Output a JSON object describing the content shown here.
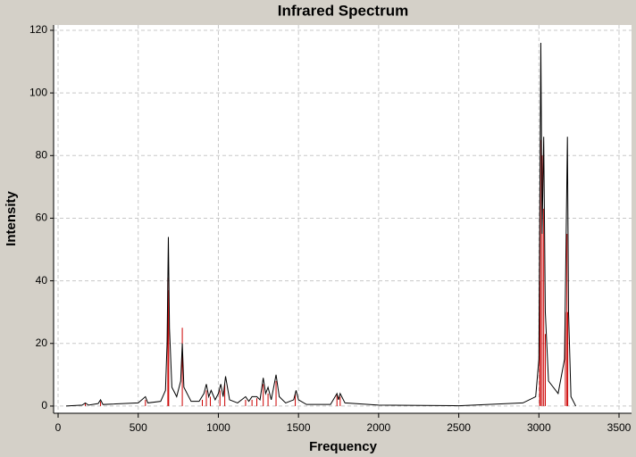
{
  "chart_data": {
    "type": "line",
    "title": "Infrared Spectrum",
    "x_label": "Frequency",
    "y_label": "Intensity",
    "xlim": [
      -28,
      3578
    ],
    "ylim": [
      -2.3,
      121.7
    ],
    "xticks": [
      0,
      500,
      1000,
      1500,
      2000,
      2500,
      3000,
      3500
    ],
    "yticks": [
      0,
      20,
      40,
      60,
      80,
      100,
      120
    ],
    "grid": true,
    "series": [
      {
        "type": "stick",
        "color": "#cc0000",
        "x": [
          170,
          265,
          545,
          685,
          690,
          775,
          900,
          925,
          950,
          1010,
          1040,
          1170,
          1210,
          1240,
          1280,
          1310,
          1360,
          1480,
          1740,
          1760,
          3005,
          3010,
          3020,
          3030,
          3040,
          3165,
          3175,
          3180
        ],
        "values": [
          1,
          1.5,
          2,
          41,
          37,
          25,
          2,
          5,
          3,
          5,
          7,
          2,
          2,
          2.5,
          7,
          4,
          8,
          4,
          3.5,
          3,
          40,
          85,
          80,
          63,
          23,
          30,
          55,
          30
        ]
      },
      {
        "type": "line",
        "color": "#000000",
        "x": [
          50,
          150,
          170,
          190,
          250,
          265,
          280,
          500,
          545,
          560,
          640,
          670,
          680,
          688,
          695,
          710,
          740,
          765,
          775,
          785,
          830,
          880,
          910,
          925,
          940,
          955,
          980,
          1000,
          1015,
          1030,
          1045,
          1070,
          1120,
          1170,
          1190,
          1210,
          1240,
          1260,
          1280,
          1295,
          1310,
          1330,
          1360,
          1380,
          1420,
          1470,
          1485,
          1500,
          1550,
          1700,
          1740,
          1750,
          1760,
          1790,
          2000,
          2500,
          2900,
          2980,
          3000,
          3012,
          3020,
          3030,
          3040,
          3060,
          3120,
          3160,
          3178,
          3185,
          3200,
          3230
        ],
        "values": [
          0,
          0.3,
          1,
          0.3,
          0.8,
          2,
          0.5,
          1,
          3,
          1,
          1.5,
          5,
          20,
          54,
          25,
          6,
          3,
          8,
          20,
          6,
          1.5,
          1.5,
          4,
          7,
          3,
          5,
          2,
          4,
          7,
          3,
          9.5,
          2,
          1,
          3,
          1.5,
          3,
          3,
          2,
          9,
          4,
          6,
          2,
          10,
          3,
          1,
          2,
          5,
          2,
          0.5,
          0.5,
          4,
          2,
          4,
          1,
          0.3,
          0.1,
          1,
          3,
          15,
          116,
          55,
          86,
          30,
          8,
          4,
          15,
          86,
          30,
          3,
          0
        ]
      }
    ]
  }
}
